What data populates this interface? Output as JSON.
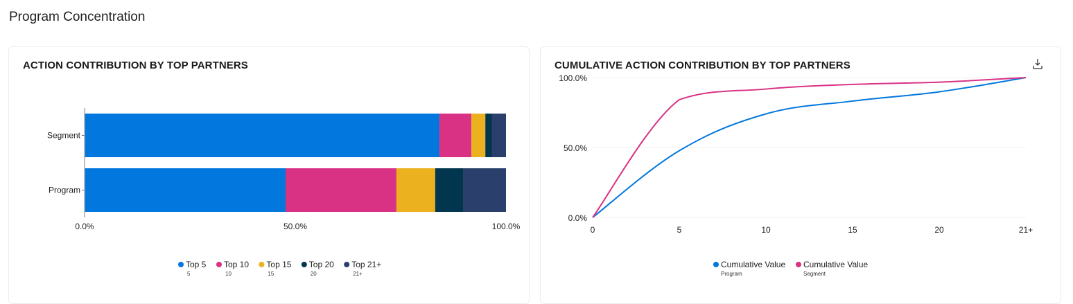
{
  "page_title": "Program Concentration",
  "download_icon": "download-icon",
  "chart_data": [
    {
      "type": "bar",
      "orientation": "horizontal",
      "stacked": true,
      "title": "ACTION CONTRIBUTION BY TOP PARTNERS",
      "categories": [
        "Segment",
        "Program"
      ],
      "series": [
        {
          "name": "Top 5",
          "sublabel": "5",
          "color": "#0277dd",
          "values": [
            84.2,
            47.7
          ]
        },
        {
          "name": "Top 10",
          "sublabel": "10",
          "color": "#d93285",
          "values": [
            7.6,
            26.3
          ]
        },
        {
          "name": "Top 15",
          "sublabel": "15",
          "color": "#ecb11f",
          "values": [
            3.3,
            9.2
          ]
        },
        {
          "name": "Top 20",
          "sublabel": "20",
          "color": "#02364f",
          "values": [
            1.6,
            6.6
          ]
        },
        {
          "name": "Top 21+",
          "sublabel": "21+",
          "color": "#2b3f6c",
          "values": [
            3.3,
            10.2
          ]
        }
      ],
      "xlim": [
        0,
        100
      ],
      "x_ticks": [
        "0.0%",
        "50.0%",
        "100.0%"
      ],
      "legend": "bottom"
    },
    {
      "type": "line",
      "title": "CUMULATIVE ACTION CONTRIBUTION BY TOP PARTNERS",
      "x": [
        "0",
        "5",
        "10",
        "15",
        "20",
        "21+"
      ],
      "series": [
        {
          "name": "Cumulative Value",
          "sublabel": "Program",
          "color": "#0277dd",
          "values": [
            0,
            47.7,
            74.0,
            83.2,
            89.8,
            100
          ]
        },
        {
          "name": "Cumulative Value",
          "sublabel": "Segment",
          "color": "#d93285",
          "values": [
            0,
            84.2,
            91.8,
            95.1,
            96.7,
            100
          ]
        }
      ],
      "ylim": [
        0,
        100
      ],
      "y_ticks": [
        "0.0%",
        "50.0%",
        "100.0%"
      ],
      "grid": true,
      "legend": "bottom"
    }
  ]
}
